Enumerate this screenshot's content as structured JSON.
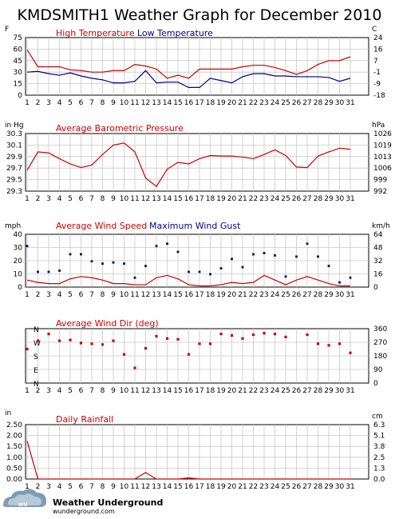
{
  "page": {
    "title": "KMDSMITH1 Weather Graph for December 2010",
    "logo_text": "Weather Underground",
    "logo_sub": "wunderground.com",
    "colors": {
      "red": "#cc0000",
      "blue": "#00008b",
      "grid": "#c8c8c8"
    }
  },
  "chart_data": [
    {
      "type": "line",
      "title": "Temperature",
      "unit_left": "F",
      "unit_right": "C",
      "x": [
        1,
        2,
        3,
        4,
        5,
        6,
        7,
        8,
        9,
        10,
        11,
        12,
        13,
        14,
        15,
        16,
        17,
        18,
        19,
        20,
        21,
        22,
        23,
        24,
        25,
        26,
        27,
        28,
        29,
        30,
        31
      ],
      "ylim": [
        0,
        75
      ],
      "y_ticks_left": [
        "75",
        "60",
        "45",
        "30",
        "15",
        "0"
      ],
      "y_ticks_right": [
        "24",
        "16",
        "7",
        "-1",
        "-9",
        "-18"
      ],
      "series": [
        {
          "name": "High Temperature",
          "color": "#cc0000",
          "values": [
            59,
            37,
            37,
            37,
            33,
            32,
            30,
            30,
            32,
            32,
            40,
            38,
            34,
            22,
            26,
            22,
            34,
            34,
            34,
            34,
            37,
            39,
            39,
            36,
            32,
            27,
            32,
            40,
            45,
            45,
            50
          ]
        },
        {
          "name": "Low Temperature",
          "color": "#00008b",
          "values": [
            30,
            31,
            28,
            26,
            29,
            25,
            22,
            20,
            16,
            16,
            18,
            32,
            16,
            17,
            17,
            10,
            10,
            22,
            19,
            16,
            24,
            28,
            28,
            25,
            25,
            24,
            24,
            24,
            23,
            18,
            22
          ]
        }
      ]
    },
    {
      "type": "line",
      "title": "Average Barometric Pressure",
      "unit_left": "in Hg",
      "unit_right": "hPa",
      "x": [
        1,
        2,
        3,
        4,
        5,
        6,
        7,
        8,
        9,
        10,
        11,
        12,
        13,
        14,
        15,
        16,
        17,
        18,
        19,
        20,
        21,
        22,
        23,
        24,
        25,
        26,
        27,
        28,
        29,
        30,
        31
      ],
      "ylim": [
        29.3,
        30.4
      ],
      "y_ticks_left": [
        "30.3",
        "30.1",
        "29.9",
        "29.7",
        "29.5",
        "29.3"
      ],
      "y_ticks_right": [
        "1026",
        "1019",
        "1013",
        "1006",
        "999",
        "992"
      ],
      "series": [
        {
          "name": "Average Barometric Pressure",
          "color": "#cc0000",
          "values": [
            29.7,
            30.05,
            30.03,
            29.92,
            29.82,
            29.75,
            29.8,
            30.0,
            30.18,
            30.22,
            30.05,
            29.55,
            29.39,
            29.72,
            29.85,
            29.82,
            29.92,
            29.98,
            29.97,
            29.97,
            29.95,
            29.92,
            30.0,
            30.09,
            29.98,
            29.76,
            29.75,
            29.97,
            30.05,
            30.12,
            30.1
          ]
        }
      ]
    },
    {
      "type": "line",
      "title": "Wind",
      "unit_left": "mph",
      "unit_right": "km/h",
      "x": [
        1,
        2,
        3,
        4,
        5,
        6,
        7,
        8,
        9,
        10,
        11,
        12,
        13,
        14,
        15,
        16,
        17,
        18,
        19,
        20,
        21,
        22,
        23,
        24,
        25,
        26,
        27,
        28,
        29,
        30,
        31
      ],
      "ylim": [
        0,
        45
      ],
      "y_ticks_left": [
        "40",
        "30",
        "20",
        "10",
        "0"
      ],
      "y_ticks_right": [
        "64",
        "48",
        "32",
        "16",
        "0"
      ],
      "series": [
        {
          "name": "Average Wind Speed",
          "color": "#cc0000",
          "values": [
            6,
            4,
            3,
            3,
            7,
            9,
            8,
            6,
            3,
            3,
            2,
            2,
            8,
            10,
            7,
            2,
            1,
            1,
            2,
            4,
            3,
            4,
            10,
            6,
            2,
            6,
            9,
            6,
            3,
            1,
            1
          ]
        },
        {
          "name": "Maximum Wind Gust",
          "color": "#00008b",
          "style": "points",
          "values": [
            35,
            13,
            13,
            14,
            28,
            28,
            22,
            20,
            21,
            20,
            8,
            18,
            35,
            37,
            30,
            13,
            13,
            11,
            16,
            24,
            17,
            28,
            29,
            27,
            9,
            26,
            37,
            26,
            18,
            4,
            8
          ]
        }
      ]
    },
    {
      "type": "scatter",
      "title": "Average Wind Dir (deg)",
      "unit_right": "",
      "x": [
        1,
        2,
        3,
        4,
        5,
        6,
        7,
        8,
        9,
        10,
        11,
        12,
        13,
        14,
        15,
        16,
        17,
        18,
        19,
        20,
        21,
        22,
        23,
        24,
        25,
        26,
        27,
        28,
        29,
        30,
        31
      ],
      "ylim": [
        0,
        360
      ],
      "y_ticks_right": [
        "360",
        "270",
        "180",
        "90",
        "0"
      ],
      "compass_labels": [
        "N",
        "W",
        "S",
        "E",
        "N"
      ],
      "series": [
        {
          "name": "Average Wind Dir (deg)",
          "color": "#cc0000",
          "values": [
            225,
            280,
            325,
            280,
            285,
            265,
            260,
            255,
            280,
            190,
            100,
            230,
            310,
            295,
            290,
            190,
            260,
            260,
            325,
            315,
            295,
            320,
            330,
            325,
            305,
            null,
            320,
            260,
            250,
            260,
            200
          ]
        }
      ]
    },
    {
      "type": "line",
      "title": "Daily Rainfall",
      "unit_left": "in",
      "unit_right": "cm",
      "x": [
        1,
        2,
        3,
        4,
        5,
        6,
        7,
        8,
        9,
        10,
        11,
        12,
        13,
        14,
        15,
        16,
        17,
        18,
        19,
        20,
        21,
        22,
        23,
        24,
        25,
        26,
        27,
        28,
        29,
        30,
        31
      ],
      "ylim": [
        0,
        2.5
      ],
      "y_ticks_left": [
        "2.50",
        "2.00",
        "1.50",
        "1.00",
        "0.50",
        "0.00"
      ],
      "y_ticks_right": [
        "6.3",
        "5.1",
        "3.8",
        "2.5",
        "1.3",
        "0.0"
      ],
      "series": [
        {
          "name": "Daily Rainfall",
          "color": "#cc0000",
          "values": [
            1.75,
            0,
            0,
            0,
            0,
            0,
            0,
            0,
            0,
            0,
            0,
            0.3,
            0,
            0,
            0,
            0.05,
            0,
            0,
            0,
            0,
            0,
            0,
            0,
            0,
            0,
            0,
            0,
            0,
            0,
            0,
            0
          ]
        }
      ]
    }
  ]
}
